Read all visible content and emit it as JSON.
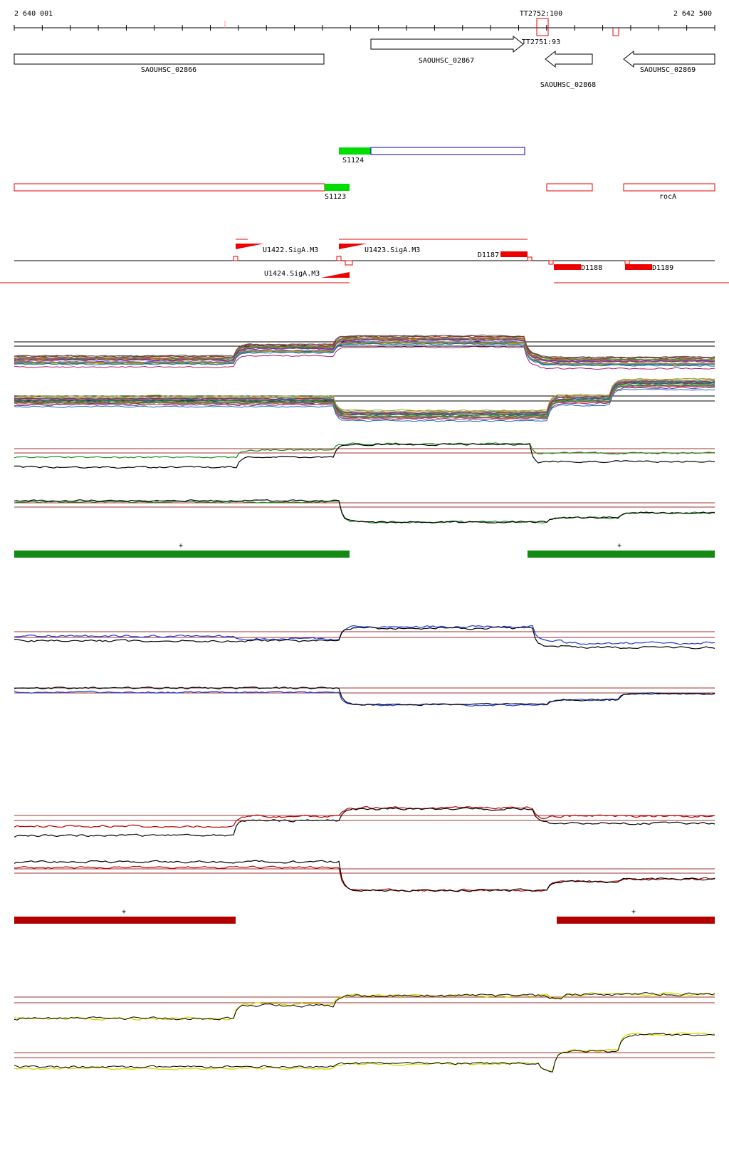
{
  "ruler": {
    "start_label": "2 640 001",
    "end_label": "2 642 500",
    "terminators": [
      "TT2752:100",
      "TT2751:93"
    ]
  },
  "genes": [
    {
      "id": "SAOUHSC_02866",
      "strand": "none"
    },
    {
      "id": "SAOUHSC_02867",
      "strand": "+"
    },
    {
      "id": "SAOUHSC_02868",
      "strand": "-"
    },
    {
      "id": "SAOUHSC_02869",
      "strand": "-"
    }
  ],
  "segments": {
    "s1124": "S1124",
    "s1123": "S1123",
    "rocA": "rocA"
  },
  "promoters": {
    "u1422": "U1422.SigA.M3",
    "u1423": "U1423.SigA.M3",
    "u1424": "U1424.SigA.M3"
  },
  "downshifts": {
    "d1187": "D1187",
    "d1188": "D1188",
    "d1189": "D1189"
  },
  "bar_marks": {
    "green_left": "+",
    "green_right": "+",
    "red_left": "+",
    "red_right": "+"
  },
  "colors": {
    "gene_outline": "#000000",
    "segment_green": "#00dd00",
    "segment_blue": "#0000cc",
    "segment_red": "#ee0000",
    "promoter_red": "#ee0000",
    "bar_green": "#138a13",
    "bar_red": "#b20000",
    "track_green": "#1a8c1a",
    "track_blue": "#1a3ad8",
    "track_red": "#c00000",
    "track_yellow": "#d8d800",
    "reference_line": "#a03030"
  }
}
